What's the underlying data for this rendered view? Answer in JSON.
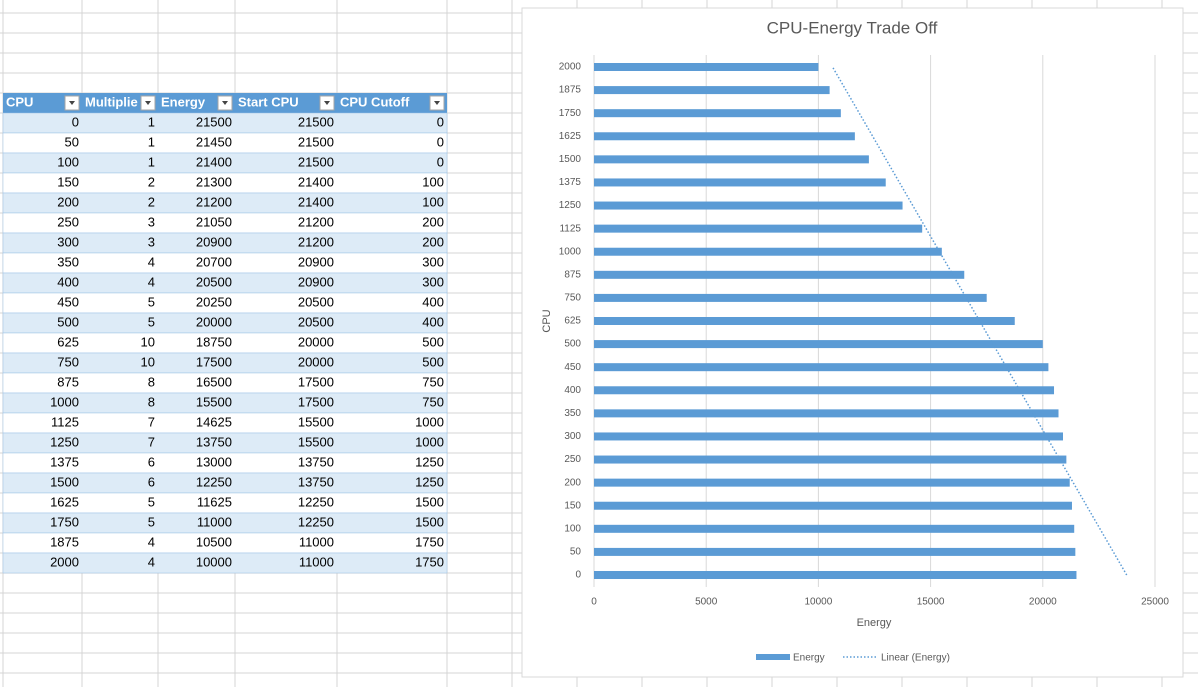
{
  "table": {
    "headers": [
      "CPU",
      "Multiplie",
      "Energy",
      "Start CPU",
      "CPU Cutoff"
    ],
    "rows": [
      [
        0,
        1,
        21500,
        21500,
        0
      ],
      [
        50,
        1,
        21450,
        21500,
        0
      ],
      [
        100,
        1,
        21400,
        21500,
        0
      ],
      [
        150,
        2,
        21300,
        21400,
        100
      ],
      [
        200,
        2,
        21200,
        21400,
        100
      ],
      [
        250,
        3,
        21050,
        21200,
        200
      ],
      [
        300,
        3,
        20900,
        21200,
        200
      ],
      [
        350,
        4,
        20700,
        20900,
        300
      ],
      [
        400,
        4,
        20500,
        20900,
        300
      ],
      [
        450,
        5,
        20250,
        20500,
        400
      ],
      [
        500,
        5,
        20000,
        20500,
        400
      ],
      [
        625,
        10,
        18750,
        20000,
        500
      ],
      [
        750,
        10,
        17500,
        20000,
        500
      ],
      [
        875,
        8,
        16500,
        17500,
        750
      ],
      [
        1000,
        8,
        15500,
        17500,
        750
      ],
      [
        1125,
        7,
        14625,
        15500,
        1000
      ],
      [
        1250,
        7,
        13750,
        15500,
        1000
      ],
      [
        1375,
        6,
        13000,
        13750,
        1250
      ],
      [
        1500,
        6,
        12250,
        13750,
        1250
      ],
      [
        1625,
        5,
        11625,
        12250,
        1500
      ],
      [
        1750,
        5,
        11000,
        12250,
        1500
      ],
      [
        1875,
        4,
        10500,
        11000,
        1750
      ],
      [
        2000,
        4,
        10000,
        11000,
        1750
      ]
    ]
  },
  "chart_data": {
    "type": "hbar",
    "title": "CPU-Energy Trade Off",
    "x_label": "Energy",
    "y_label": "CPU",
    "categories": [
      0,
      50,
      100,
      150,
      200,
      250,
      300,
      350,
      400,
      450,
      500,
      625,
      750,
      875,
      1000,
      1125,
      1250,
      1375,
      1500,
      1625,
      1750,
      1875,
      2000
    ],
    "series": [
      {
        "name": "Energy",
        "color": "#5b9bd5",
        "values": [
          21500,
          21450,
          21400,
          21300,
          21200,
          21050,
          20900,
          20700,
          20500,
          20250,
          20000,
          18750,
          17500,
          16500,
          15500,
          14625,
          13750,
          13000,
          12250,
          11625,
          11000,
          10500,
          10000
        ]
      }
    ],
    "trendline": {
      "name": "Linear (Energy)",
      "type": "linear"
    },
    "xlim": [
      0,
      25000
    ],
    "xticks": [
      0,
      5000,
      10000,
      15000,
      20000,
      25000
    ],
    "grid": true,
    "legend": "bottom"
  }
}
